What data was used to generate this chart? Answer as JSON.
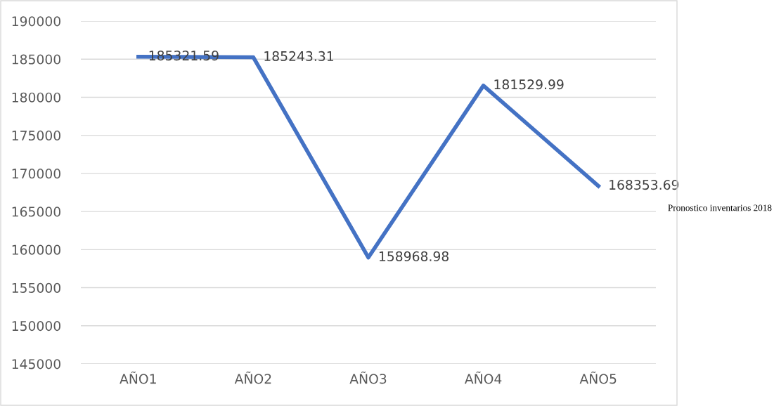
{
  "chart_data": {
    "type": "line",
    "categories": [
      "AÑO1",
      "AÑO2",
      "AÑO3",
      "AÑO4",
      "AÑO5"
    ],
    "series": [
      {
        "color": "#4472c4",
        "values": [
          185321.59,
          185243.31,
          158968.98,
          181529.99,
          168353.69
        ]
      }
    ],
    "ylim": [
      145000,
      190000
    ],
    "yticks": [
      145000,
      150000,
      155000,
      160000,
      165000,
      170000,
      175000,
      180000,
      185000,
      190000
    ],
    "grid": "y",
    "data_labels": true,
    "legend": false,
    "marker": "none",
    "line_style": "solid",
    "annotations": [
      "Pronostico inventarios 2018"
    ]
  }
}
